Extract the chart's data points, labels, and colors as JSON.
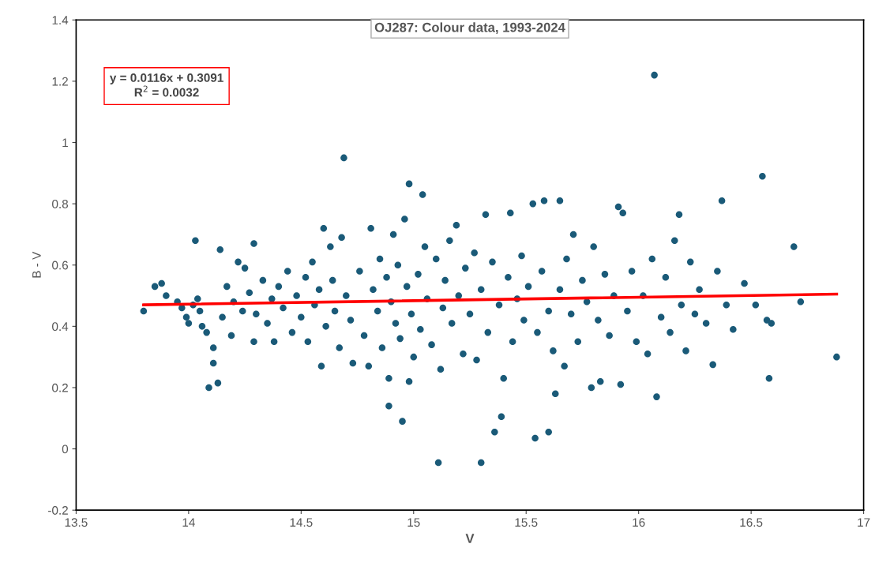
{
  "chart_data": {
    "type": "scatter",
    "title": "OJ287: Colour data, 1993-2024",
    "xlabel": "V",
    "ylabel": "B - V",
    "annotations": [
      "y = 0.0116x + 0.3091",
      "R$^{2}$ = 0.0032"
    ],
    "xlim": [
      13.5,
      17
    ],
    "xticks": [
      13.5,
      14,
      14.5,
      15,
      15.5,
      16,
      16.5,
      17
    ],
    "ylim": [
      -0.2,
      1.4
    ],
    "yticks": [
      -0.2,
      0,
      0.2,
      0.4,
      0.6,
      0.8,
      1,
      1.2,
      1.4
    ],
    "grid": false,
    "legend": false,
    "series": [
      {
        "marker": "circle",
        "color": "#1a5a78",
        "x": [
          13.8,
          13.85,
          13.88,
          13.9,
          13.95,
          13.97,
          13.99,
          14.0,
          14.02,
          14.04,
          14.05,
          14.06,
          14.08,
          14.09,
          14.11,
          14.11,
          14.13,
          14.14,
          14.15,
          14.17,
          14.19,
          14.2,
          14.22,
          14.24,
          14.25,
          14.27,
          14.29,
          14.29,
          14.3,
          14.03,
          14.33,
          14.35,
          14.37,
          14.38,
          14.4,
          14.42,
          14.44,
          14.46,
          14.48,
          14.5,
          14.52,
          14.53,
          14.55,
          14.56,
          14.58,
          14.59,
          14.6,
          14.61,
          14.63,
          14.64,
          14.65,
          14.67,
          14.68,
          14.69,
          14.7,
          14.72,
          14.73,
          14.76,
          14.78,
          14.8,
          14.81,
          14.82,
          14.84,
          14.85,
          14.86,
          14.88,
          14.89,
          14.89,
          14.9,
          14.91,
          14.92,
          14.93,
          14.94,
          14.95,
          14.96,
          14.97,
          14.98,
          14.98,
          14.99,
          15.0,
          15.02,
          15.03,
          15.04,
          15.05,
          15.06,
          15.08,
          15.1,
          15.11,
          15.12,
          15.13,
          15.14,
          15.16,
          15.17,
          15.19,
          15.2,
          15.22,
          15.23,
          15.25,
          15.27,
          15.28,
          15.3,
          15.3,
          15.32,
          15.33,
          15.35,
          15.36,
          15.38,
          15.39,
          15.4,
          15.42,
          15.43,
          15.44,
          15.46,
          15.48,
          15.49,
          15.51,
          15.53,
          15.54,
          15.55,
          15.57,
          15.58,
          15.6,
          15.6,
          15.62,
          15.63,
          15.65,
          15.65,
          15.67,
          15.68,
          15.7,
          15.71,
          15.73,
          15.75,
          15.77,
          15.79,
          15.8,
          15.82,
          15.83,
          15.85,
          15.87,
          15.89,
          15.91,
          15.92,
          15.93,
          15.95,
          15.97,
          15.99,
          16.02,
          16.04,
          16.06,
          16.07,
          16.08,
          16.1,
          16.12,
          16.14,
          16.16,
          16.18,
          16.19,
          16.21,
          16.23,
          16.25,
          16.27,
          16.3,
          16.33,
          16.35,
          16.37,
          16.39,
          16.42,
          16.47,
          16.52,
          16.55,
          16.57,
          16.58,
          16.59,
          16.69,
          16.72,
          16.88
        ],
        "values": [
          0.45,
          0.53,
          0.54,
          0.5,
          0.48,
          0.46,
          0.43,
          0.41,
          0.47,
          0.49,
          0.45,
          0.4,
          0.38,
          0.2,
          0.28,
          0.33,
          0.215,
          0.65,
          0.43,
          0.53,
          0.37,
          0.48,
          0.61,
          0.45,
          0.59,
          0.51,
          0.35,
          0.67,
          0.44,
          0.68,
          0.55,
          0.41,
          0.49,
          0.35,
          0.53,
          0.46,
          0.58,
          0.38,
          0.5,
          0.43,
          0.56,
          0.35,
          0.61,
          0.47,
          0.52,
          0.27,
          0.72,
          0.4,
          0.66,
          0.55,
          0.45,
          0.33,
          0.69,
          0.95,
          0.5,
          0.42,
          0.28,
          0.58,
          0.37,
          0.27,
          0.72,
          0.52,
          0.45,
          0.62,
          0.33,
          0.56,
          0.14,
          0.23,
          0.48,
          0.7,
          0.41,
          0.6,
          0.36,
          0.09,
          0.75,
          0.53,
          0.865,
          0.22,
          0.44,
          0.3,
          0.57,
          0.39,
          0.83,
          0.66,
          0.49,
          0.34,
          0.62,
          -0.045,
          0.26,
          0.46,
          0.55,
          0.68,
          0.41,
          0.73,
          0.5,
          0.31,
          0.59,
          0.44,
          0.64,
          0.29,
          -0.045,
          0.52,
          0.765,
          0.38,
          0.61,
          0.055,
          0.47,
          0.105,
          0.23,
          0.56,
          0.77,
          0.35,
          0.49,
          0.63,
          0.42,
          0.53,
          0.8,
          0.035,
          0.38,
          0.58,
          0.81,
          0.055,
          0.45,
          0.32,
          0.18,
          0.81,
          0.52,
          0.27,
          0.62,
          0.44,
          0.7,
          0.35,
          0.55,
          0.48,
          0.2,
          0.66,
          0.42,
          0.22,
          0.57,
          0.37,
          0.5,
          0.79,
          0.21,
          0.77,
          0.45,
          0.58,
          0.35,
          0.5,
          0.31,
          0.62,
          1.22,
          0.17,
          0.43,
          0.56,
          0.38,
          0.68,
          0.765,
          0.47,
          0.32,
          0.61,
          0.44,
          0.52,
          0.41,
          0.275,
          0.58,
          0.81,
          0.47,
          0.39,
          0.54,
          0.47,
          0.89,
          0.42,
          0.23,
          0.41,
          0.66,
          0.48,
          0.3
        ]
      },
      {
        "type": "line",
        "color": "#ff0000",
        "x": [
          13.8,
          16.88
        ],
        "values": [
          0.47,
          0.505
        ]
      }
    ]
  }
}
